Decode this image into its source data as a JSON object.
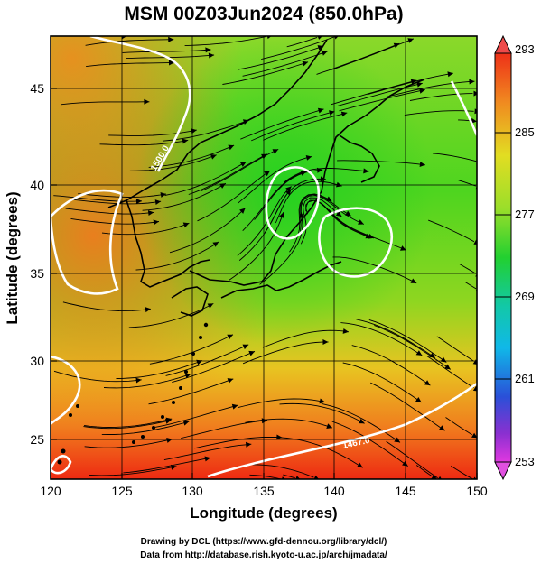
{
  "title": "MSM 00Z03Jun2024 (850.0hPa)",
  "x_axis": {
    "label": "Longitude (degrees)",
    "ticks": [
      "120",
      "125",
      "130",
      "135",
      "140",
      "145",
      "150"
    ],
    "range": [
      120,
      150
    ]
  },
  "y_axis": {
    "label": "Latitude  (degrees)",
    "ticks": [
      "25",
      "30",
      "35",
      "40",
      "45"
    ],
    "range": [
      22.4,
      47.6
    ]
  },
  "colorbar": {
    "ticks": [
      "293",
      "285",
      "277",
      "269",
      "261",
      "253"
    ],
    "range": [
      253,
      293
    ],
    "colors": [
      "#e040e0",
      "#3030d0",
      "#10c0e0",
      "#20e040",
      "#e0e020",
      "#f04020"
    ]
  },
  "contour_labels": [
    "1500.0",
    "1467.0"
  ],
  "credits": {
    "line1": "Drawing by DCL (https://www.gfd-dennou.org/library/dcl/)",
    "line2": "Data from http://database.rish.kyoto-u.ac.jp/arch/jmadata/"
  }
}
